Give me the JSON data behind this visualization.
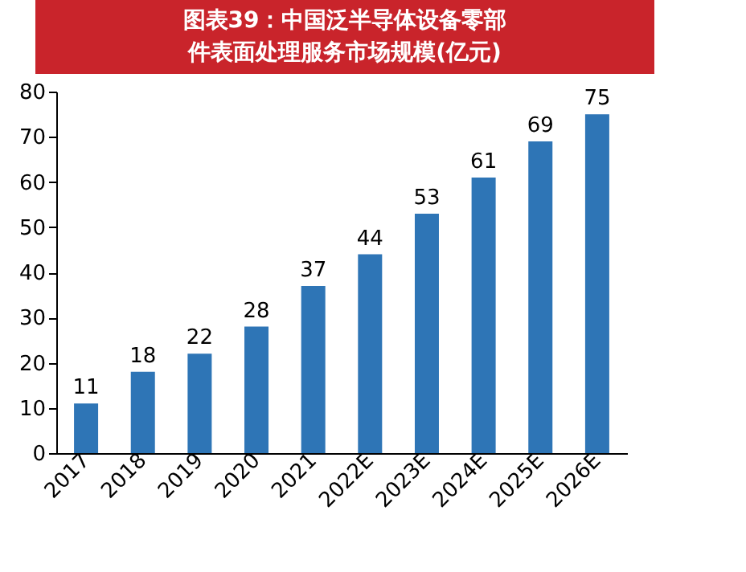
{
  "chart_data": {
    "type": "bar",
    "title": "图表39：中国泛半导体设备零部件表面处理服务市场规模(亿元)",
    "categories": [
      "2017",
      "2018",
      "2019",
      "2020",
      "2021",
      "2022E",
      "2023E",
      "2024E",
      "2025E",
      "2026E"
    ],
    "values": [
      11,
      18,
      22,
      28,
      37,
      44,
      53,
      61,
      69,
      75
    ],
    "color": "#2e75b6",
    "ylim": [
      0,
      80
    ],
    "yticks": [
      0,
      10,
      20,
      30,
      40,
      50,
      60,
      70,
      80
    ],
    "grid": false,
    "data_labels": true
  }
}
